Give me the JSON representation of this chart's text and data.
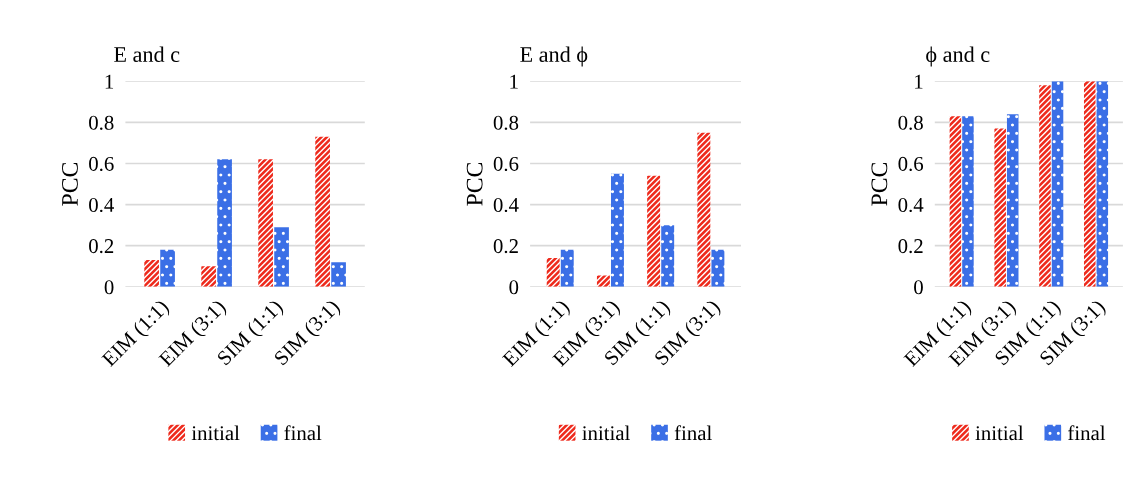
{
  "chart_data": [
    {
      "type": "bar",
      "title": "E and c",
      "ylabel": "PCC",
      "categories": [
        "EIM (1:1)",
        "EIM (3:1)",
        "SIM (1:1)",
        "SIM (3:1)"
      ],
      "series": [
        {
          "name": "initial",
          "color": "#ee2a1c",
          "values": [
            0.13,
            0.1,
            0.62,
            0.73
          ]
        },
        {
          "name": "final",
          "color": "#3b6fe6",
          "values": [
            0.18,
            0.62,
            0.29,
            0.12
          ]
        }
      ],
      "ylim": [
        0,
        1
      ],
      "yticks": [
        0,
        0.2,
        0.4,
        0.6,
        0.8,
        1
      ],
      "grid": "y",
      "legend": "bottom"
    },
    {
      "type": "bar",
      "title": "E and ϕ",
      "ylabel": "PCC",
      "categories": [
        "EIM (1:1)",
        "EIM (3:1)",
        "SIM (1:1)",
        "SIM (3:1)"
      ],
      "series": [
        {
          "name": "initial",
          "color": "#ee2a1c",
          "values": [
            0.14,
            0.055,
            0.54,
            0.75
          ]
        },
        {
          "name": "final",
          "color": "#3b6fe6",
          "values": [
            0.18,
            0.55,
            0.3,
            0.18
          ]
        }
      ],
      "ylim": [
        0,
        1
      ],
      "yticks": [
        0,
        0.2,
        0.4,
        0.6,
        0.8,
        1
      ],
      "grid": "y",
      "legend": "bottom"
    },
    {
      "type": "bar",
      "title": "ϕ and c",
      "ylabel": "PCC",
      "categories": [
        "EIM (1:1)",
        "EIM (3:1)",
        "SIM (1:1)",
        "SIM (3:1)"
      ],
      "series": [
        {
          "name": "initial",
          "color": "#ee2a1c",
          "values": [
            0.83,
            0.77,
            0.98,
            1.0
          ]
        },
        {
          "name": "final",
          "color": "#3b6fe6",
          "values": [
            0.83,
            0.84,
            1.0,
            1.0
          ]
        }
      ],
      "ylim": [
        0,
        1
      ],
      "yticks": [
        0,
        0.2,
        0.4,
        0.6,
        0.8,
        1
      ],
      "grid": "y",
      "legend": "bottom"
    }
  ]
}
